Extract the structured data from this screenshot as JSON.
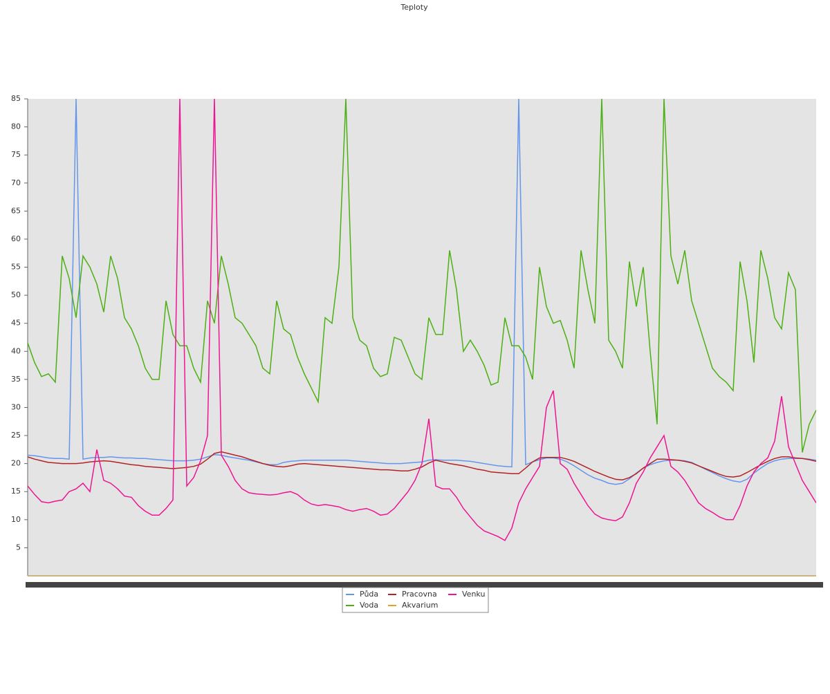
{
  "chart_data": {
    "type": "line",
    "title": "Teploty",
    "ylim": [
      0,
      85
    ],
    "yticks": [
      5,
      10,
      15,
      20,
      25,
      30,
      35,
      40,
      45,
      50,
      55,
      60,
      65,
      70,
      75,
      80,
      85
    ],
    "grid": false,
    "series": [
      {
        "name": "Půda",
        "color": "#6495ed",
        "values": [
          21.5,
          21.4,
          21.2,
          21,
          20.9,
          20.9,
          20.8,
          85,
          20.8,
          21,
          21.1,
          21.1,
          21.2,
          21.1,
          21,
          21,
          20.9,
          20.9,
          20.8,
          20.7,
          20.6,
          20.5,
          20.5,
          20.5,
          20.6,
          20.8,
          21.2,
          21.6,
          21.5,
          21.2,
          21,
          20.8,
          20.6,
          20.3,
          20,
          19.8,
          19.8,
          20.2,
          20.4,
          20.5,
          20.6,
          20.6,
          20.6,
          20.6,
          20.6,
          20.6,
          20.6,
          20.5,
          20.4,
          20.3,
          20.2,
          20.1,
          20,
          20,
          20,
          20.1,
          20.2,
          20.3,
          20.6,
          20.7,
          20.6,
          20.6,
          20.6,
          20.5,
          20.4,
          20.2,
          20,
          19.8,
          19.6,
          19.5,
          19.4,
          85,
          19.8,
          20.3,
          20.7,
          21,
          21,
          20.8,
          20.3,
          19.6,
          18.8,
          18,
          17.4,
          17,
          16.5,
          16.3,
          16.5,
          17.3,
          18.3,
          19.2,
          19.8,
          20.2,
          20.5,
          20.6,
          20.6,
          20.5,
          20.2,
          19.6,
          19,
          18.4,
          17.8,
          17.3,
          16.9,
          16.7,
          17.2,
          18.3,
          19.2,
          20,
          20.5,
          20.8,
          20.9,
          20.9,
          20.9,
          20.8,
          20.6
        ]
      },
      {
        "name": "Voda",
        "color": "#4caf12",
        "values": [
          41.5,
          38,
          35.5,
          36,
          34.5,
          57,
          53,
          46,
          57,
          55,
          52,
          47,
          57,
          53,
          46,
          44,
          41,
          37,
          35,
          35,
          49,
          43,
          41,
          41,
          37,
          34.5,
          49,
          45,
          57,
          52,
          46,
          45,
          43,
          41,
          37,
          36,
          49,
          44,
          43,
          39,
          36,
          33.5,
          31,
          46,
          45,
          55,
          85,
          46,
          42,
          41,
          37,
          35.5,
          36,
          42.5,
          42,
          39,
          36,
          35,
          46,
          43,
          43,
          58,
          51,
          40,
          42,
          40,
          37.5,
          34,
          34.5,
          46,
          41,
          41,
          39,
          35,
          55,
          48,
          45,
          45.5,
          42,
          37,
          58,
          51,
          45,
          85,
          42,
          40,
          37,
          56,
          48,
          55,
          40,
          27,
          85,
          57,
          52,
          58,
          49,
          45,
          41,
          37,
          35.5,
          34.5,
          33,
          56,
          49,
          38,
          58,
          53,
          46,
          44,
          54,
          51,
          22,
          27,
          29.5
        ]
      },
      {
        "name": "Pracovna",
        "color": "#b22222",
        "values": [
          21.2,
          20.8,
          20.5,
          20.2,
          20.1,
          20,
          20,
          20,
          20.1,
          20.3,
          20.4,
          20.5,
          20.4,
          20.2,
          20,
          19.8,
          19.7,
          19.5,
          19.4,
          19.3,
          19.2,
          19.1,
          19.2,
          19.3,
          19.5,
          19.9,
          20.8,
          21.8,
          22.1,
          21.8,
          21.5,
          21.2,
          20.8,
          20.4,
          20,
          19.7,
          19.5,
          19.4,
          19.6,
          19.9,
          20,
          19.9,
          19.8,
          19.7,
          19.6,
          19.5,
          19.4,
          19.3,
          19.2,
          19.1,
          19,
          18.9,
          18.9,
          18.8,
          18.7,
          18.7,
          19,
          19.4,
          20.1,
          20.6,
          20.3,
          20,
          19.8,
          19.6,
          19.3,
          19,
          18.8,
          18.5,
          18.4,
          18.3,
          18.2,
          18.2,
          19.2,
          20.3,
          21,
          21.1,
          21.1,
          21.1,
          20.8,
          20.4,
          19.8,
          19.2,
          18.6,
          18.1,
          17.6,
          17.2,
          17.1,
          17.5,
          18.2,
          19.2,
          20,
          20.8,
          20.8,
          20.7,
          20.6,
          20.4,
          20.1,
          19.6,
          19.1,
          18.6,
          18.1,
          17.7,
          17.6,
          17.8,
          18.4,
          19.1,
          19.8,
          20.4,
          20.9,
          21.2,
          21.2,
          21,
          20.9,
          20.7,
          20.4
        ]
      },
      {
        "name": "Akvarium",
        "color": "#e8a020",
        "values": [
          0,
          0,
          0,
          0,
          0,
          0,
          0,
          0,
          0,
          0,
          0,
          0,
          0,
          0,
          0,
          0,
          0,
          0,
          0,
          0,
          0,
          0,
          0,
          0,
          0,
          0,
          0,
          0,
          0,
          0,
          0,
          0,
          0,
          0,
          0,
          0,
          0,
          0,
          0,
          0,
          0,
          0,
          0,
          0,
          0,
          0,
          0,
          0,
          0,
          0,
          0,
          0,
          0,
          0,
          0,
          0,
          0,
          0,
          0,
          0,
          0,
          0,
          0,
          0,
          0,
          0,
          0,
          0,
          0,
          0,
          0,
          0,
          0,
          0,
          0,
          0,
          0,
          0,
          0,
          0,
          0,
          0,
          0,
          0,
          0,
          0,
          0,
          0,
          0,
          0,
          0,
          0,
          0,
          0,
          0,
          0,
          0,
          0,
          0,
          0,
          0,
          0,
          0,
          0,
          0,
          0,
          0,
          0,
          0,
          0,
          0,
          0,
          0,
          0,
          0
        ]
      },
      {
        "name": "Venku",
        "color": "#ee1493",
        "values": [
          16,
          14.5,
          13.2,
          13,
          13.3,
          13.5,
          15,
          15.5,
          16.5,
          15,
          22.5,
          17,
          16.5,
          15.5,
          14.2,
          14,
          12.5,
          11.5,
          10.8,
          10.8,
          12,
          13.5,
          85,
          16,
          17.5,
          20.5,
          25,
          85,
          21.5,
          19.5,
          17,
          15.5,
          14.8,
          14.6,
          14.5,
          14.4,
          14.5,
          14.8,
          15,
          14.5,
          13.5,
          12.8,
          12.5,
          12.7,
          12.5,
          12.3,
          11.8,
          11.5,
          11.8,
          12,
          11.5,
          10.8,
          11,
          12,
          13.5,
          15,
          17,
          20,
          28,
          16,
          15.5,
          15.5,
          14,
          12,
          10.5,
          9,
          8,
          7.5,
          7,
          6.3,
          8.5,
          13,
          15.5,
          17.5,
          19.5,
          30,
          33,
          20,
          19,
          16.5,
          14.5,
          12.5,
          11,
          10.3,
          10,
          9.8,
          10.5,
          13,
          16.5,
          18.5,
          21,
          23,
          25,
          19.5,
          18.5,
          17,
          15,
          13,
          12,
          11.3,
          10.5,
          10,
          10,
          12.5,
          16,
          18.5,
          20,
          21,
          24,
          32,
          23,
          20,
          17,
          15,
          13
        ]
      }
    ]
  }
}
